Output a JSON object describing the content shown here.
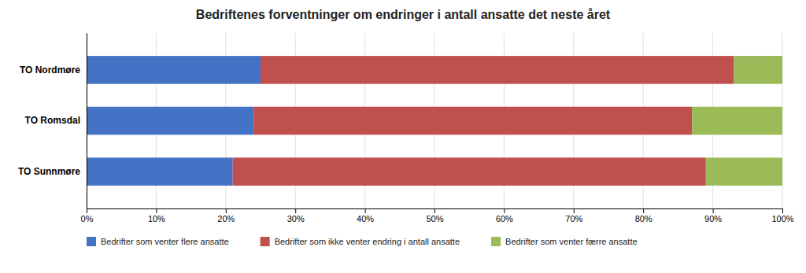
{
  "chart_data": {
    "type": "bar",
    "orientation": "horizontal",
    "stacked": true,
    "title": "Bedriftenes forventninger om endringer i antall ansatte det neste året",
    "categories": [
      "TO Nordmøre",
      "TO Romsdal",
      "TO Sunnmøre"
    ],
    "series": [
      {
        "name": "Bedrifter som venter flere ansatte",
        "color": "#4472C4",
        "values": [
          25,
          24,
          21
        ]
      },
      {
        "name": "Bedrifter som ikke venter endring i antall ansatte",
        "color": "#C0504D",
        "values": [
          68,
          63,
          68
        ]
      },
      {
        "name": "Bedrifter som venter færre ansatte",
        "color": "#9BBB59",
        "values": [
          7,
          13,
          11
        ]
      }
    ],
    "xlim": [
      0,
      100
    ],
    "xticks": [
      {
        "value": 0,
        "label": "0%"
      },
      {
        "value": 10,
        "label": "10%"
      },
      {
        "value": 20,
        "label": "20%"
      },
      {
        "value": 30,
        "label": "30%"
      },
      {
        "value": 40,
        "label": "40%"
      },
      {
        "value": 50,
        "label": "50%"
      },
      {
        "value": 60,
        "label": "60%"
      },
      {
        "value": 70,
        "label": "70%"
      },
      {
        "value": 80,
        "label": "80%"
      },
      {
        "value": 90,
        "label": "90%"
      },
      {
        "value": 100,
        "label": "100%"
      }
    ],
    "grid": true,
    "legend": "bottom"
  }
}
